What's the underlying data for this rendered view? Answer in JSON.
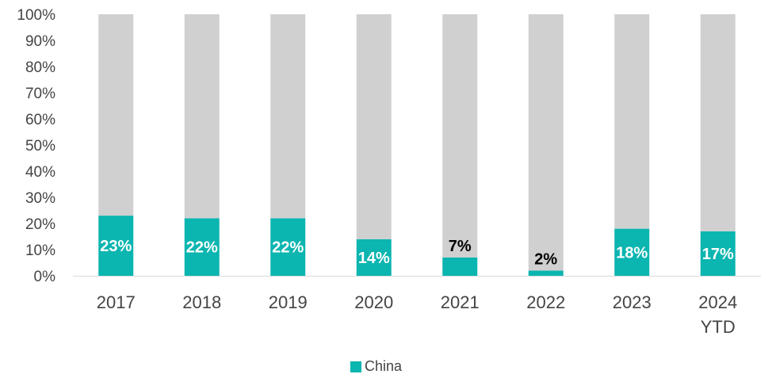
{
  "chart_data": {
    "type": "bar",
    "stacked": true,
    "percent_stacked": true,
    "categories": [
      "2017",
      "2018",
      "2019",
      "2020",
      "2021",
      "2022",
      "2023",
      "2024 YTD"
    ],
    "series": [
      {
        "name": "China",
        "values": [
          23,
          22,
          22,
          14,
          7,
          2,
          18,
          17
        ],
        "color": "#0bb5b0",
        "labels": [
          "23%",
          "22%",
          "22%",
          "14%",
          "7%",
          "2%",
          "18%",
          "17%"
        ]
      },
      {
        "values": [
          77,
          78,
          78,
          86,
          93,
          98,
          82,
          83
        ],
        "color": "#d0d0d0"
      }
    ],
    "ylim": [
      0,
      100
    ],
    "yticks": [
      "0%",
      "10%",
      "20%",
      "30%",
      "40%",
      "50%",
      "60%",
      "70%",
      "80%",
      "90%",
      "100%"
    ],
    "grid": false,
    "legend": {
      "position": "bottom",
      "entries": [
        "China"
      ]
    }
  }
}
